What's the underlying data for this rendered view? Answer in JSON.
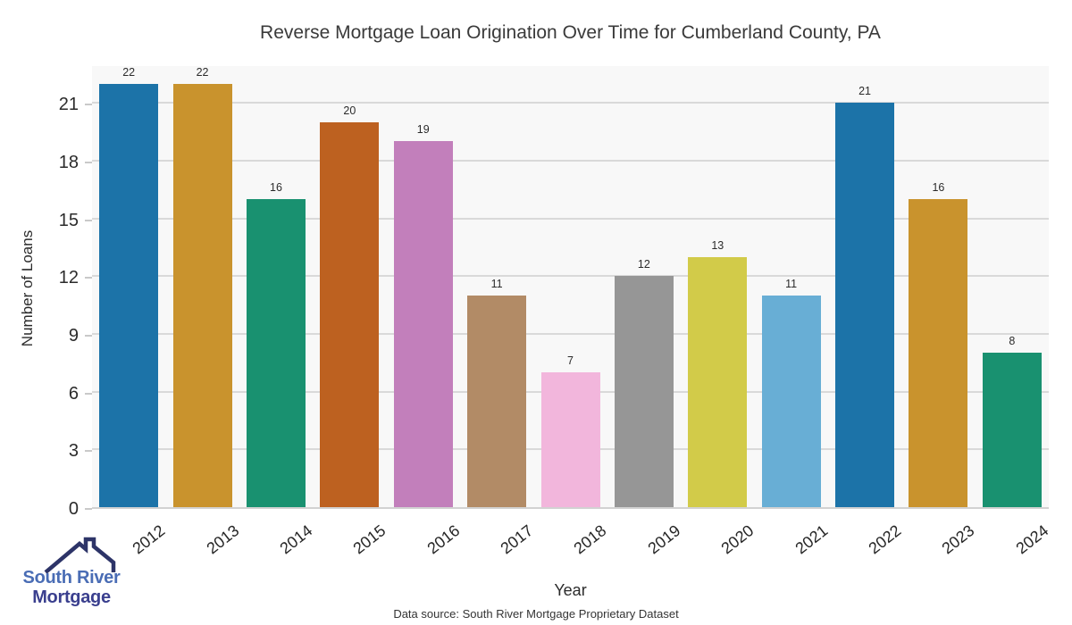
{
  "chart_data": {
    "type": "bar",
    "title": "Reverse Mortgage Loan Origination Over Time for Cumberland County, PA",
    "categories": [
      "2012",
      "2013",
      "2014",
      "2015",
      "2016",
      "2017",
      "2018",
      "2019",
      "2020",
      "2021",
      "2022",
      "2023",
      "2024"
    ],
    "values": [
      22,
      22,
      16,
      20,
      19,
      11,
      7,
      12,
      13,
      11,
      21,
      16,
      8
    ],
    "xlabel": "Year",
    "ylabel": "Number of Loans",
    "ylim": [
      0,
      23
    ],
    "yticks": [
      0,
      3,
      6,
      9,
      12,
      15,
      18,
      21
    ],
    "grid": true,
    "value_labels_shown": true,
    "legend": "none",
    "bar_colors": [
      "#1c73a8",
      "#c9932d",
      "#199170",
      "#bd6120",
      "#c27fbb",
      "#b28b66",
      "#f2b6dc",
      "#969696",
      "#d2cb49",
      "#68aed5",
      "#1c73a8",
      "#c9932d",
      "#199170"
    ],
    "plot_background": "#f8f8f8",
    "grid_color": "#d9d9d9",
    "axis_line_color": "#d2d2d2",
    "text_color": "#2b2b2b"
  },
  "footer": {
    "source": "Data source: South River Mortgage Proprietary Dataset"
  },
  "logo": {
    "line1": "South River",
    "line2": "Mortgage",
    "line1_color": "#4a6db5",
    "line2_color": "#3a3f8e",
    "roof_color": "#2d3468"
  }
}
